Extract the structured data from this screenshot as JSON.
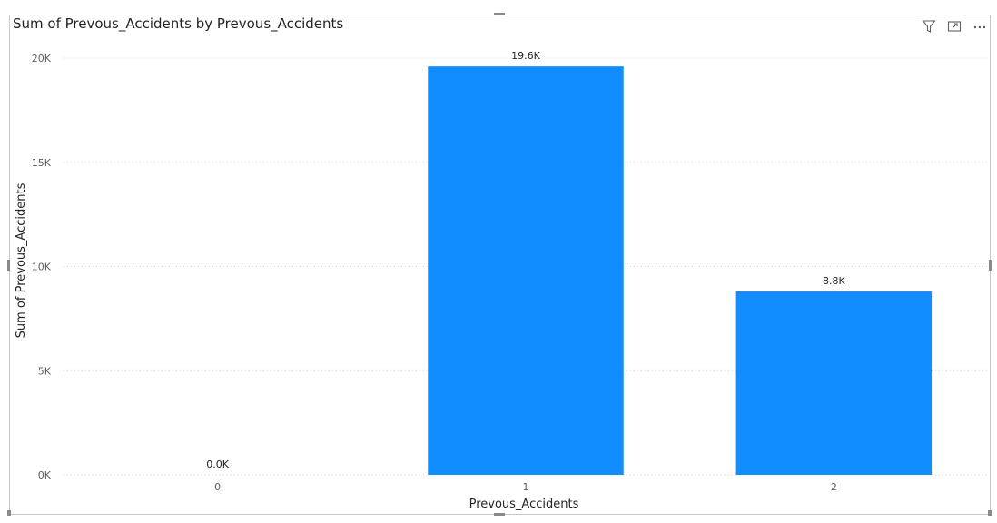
{
  "visual": {
    "title": "Sum of Prevous_Accidents by Prevous_Accidents",
    "header_icons": [
      "filter-icon",
      "focus-mode-icon",
      "more-options-icon"
    ]
  },
  "chart_data": {
    "type": "bar",
    "title": "Sum of Prevous_Accidents by Prevous_Accidents",
    "xlabel": "Prevous_Accidents",
    "ylabel": "Sum of Prevous_Accidents",
    "categories": [
      "0",
      "1",
      "2"
    ],
    "values": [
      0,
      19600,
      8800
    ],
    "data_labels": [
      "0.0K",
      "19.6K",
      "8.8K"
    ],
    "yticks": [
      0,
      5000,
      10000,
      15000,
      20000
    ],
    "ytick_labels": [
      "0K",
      "5K",
      "10K",
      "15K",
      "20K"
    ],
    "ylim": [
      0,
      20000
    ],
    "grid": true,
    "bar_color": "#118DFF"
  }
}
